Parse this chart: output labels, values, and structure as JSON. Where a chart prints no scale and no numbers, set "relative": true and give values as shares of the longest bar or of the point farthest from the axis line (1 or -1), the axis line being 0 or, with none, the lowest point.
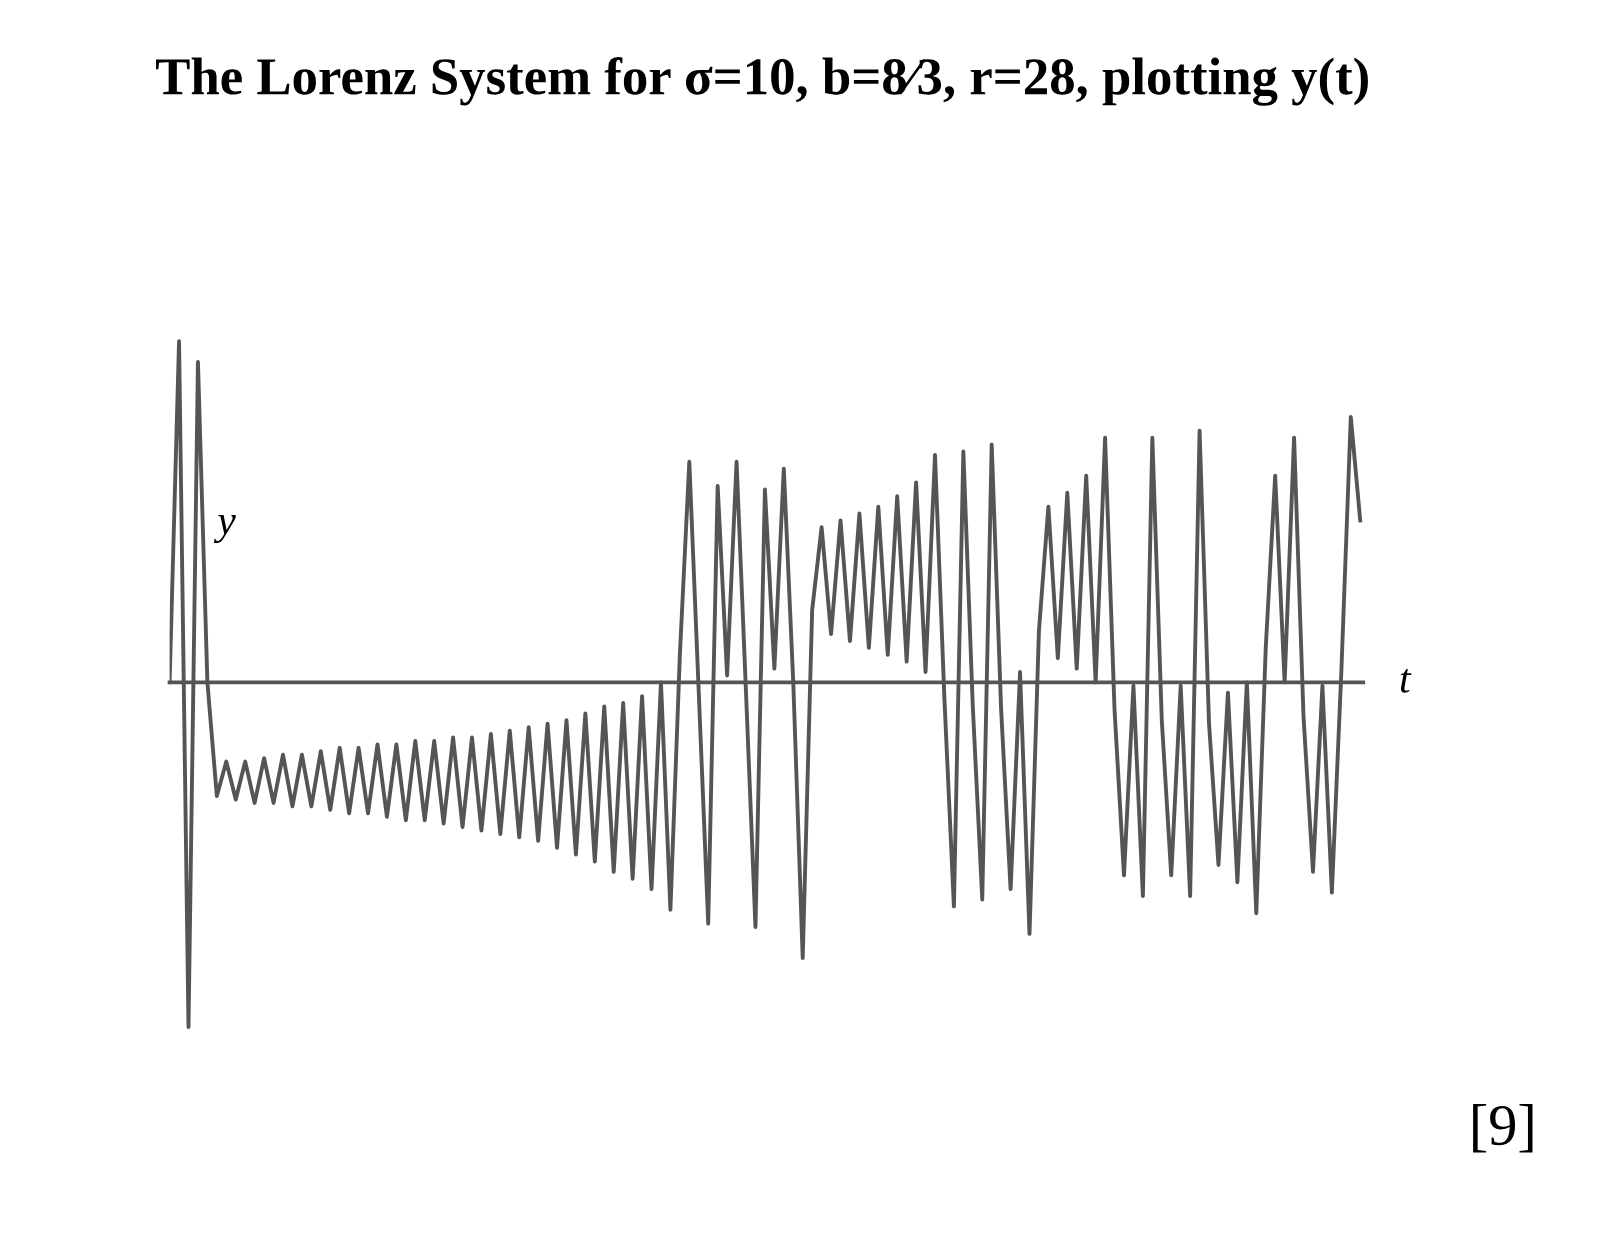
{
  "chart_data": {
    "type": "line",
    "title": "The Lorenz System for σ=10, b=8⁄3, r=28, plotting y(t)",
    "xlabel": "t",
    "ylabel": "y",
    "relative": true,
    "annotations": [
      "[9]"
    ],
    "legend": false,
    "categories": [
      null,
      null,
      null,
      null,
      null,
      null,
      null,
      null,
      null,
      null,
      null,
      null,
      null,
      null,
      null,
      null,
      null,
      null,
      null,
      null,
      null,
      null,
      null,
      null,
      null,
      null,
      null,
      null,
      null,
      null,
      null,
      null,
      null,
      null,
      null,
      null,
      null,
      null,
      null,
      null,
      null,
      null,
      null,
      null,
      null,
      null,
      null,
      null,
      null,
      null,
      null,
      null,
      null,
      null,
      null,
      null,
      null,
      null,
      null,
      null,
      null,
      null,
      null,
      null,
      null,
      null,
      null,
      null,
      null,
      null,
      null,
      null,
      null,
      null,
      null,
      null,
      null,
      null,
      null,
      null,
      null,
      null,
      null,
      null,
      null,
      null,
      null,
      null,
      null,
      null,
      null,
      null,
      null,
      null,
      null,
      null,
      null,
      null,
      null,
      null,
      null,
      null,
      null,
      null,
      null,
      null,
      null,
      null,
      null,
      null,
      null,
      null,
      null,
      null,
      null,
      null,
      null,
      null,
      null,
      null,
      null,
      null,
      null,
      null,
      null,
      null,
      null
    ],
    "series": [
      {
        "color": "#555555",
        "values": [
          0.0,
          0.99,
          -1.0,
          0.93,
          0.0,
          -0.33,
          -0.23,
          -0.34,
          -0.23,
          -0.35,
          -0.22,
          -0.35,
          -0.21,
          -0.36,
          -0.21,
          -0.36,
          -0.2,
          -0.37,
          -0.19,
          -0.38,
          -0.19,
          -0.38,
          -0.18,
          -0.39,
          -0.18,
          -0.4,
          -0.17,
          -0.4,
          -0.17,
          -0.41,
          -0.16,
          -0.42,
          -0.16,
          -0.43,
          -0.15,
          -0.44,
          -0.14,
          -0.45,
          -0.13,
          -0.46,
          -0.12,
          -0.48,
          -0.11,
          -0.5,
          -0.09,
          -0.52,
          -0.07,
          -0.55,
          -0.06,
          -0.57,
          -0.04,
          -0.6,
          0.0,
          -0.66,
          0.08,
          0.64,
          -0.03,
          -0.7,
          0.57,
          0.02,
          0.64,
          -0.03,
          -0.71,
          0.56,
          0.04,
          0.62,
          0.0,
          -0.8,
          0.21,
          0.45,
          0.14,
          0.47,
          0.12,
          0.49,
          0.1,
          0.51,
          0.08,
          0.54,
          0.06,
          0.58,
          0.03,
          0.66,
          -0.05,
          -0.65,
          0.67,
          -0.07,
          -0.63,
          0.69,
          -0.08,
          -0.6,
          0.03,
          -0.73,
          0.15,
          0.51,
          0.07,
          0.55,
          0.04,
          0.6,
          0.0,
          0.71,
          -0.08,
          -0.56,
          -0.01,
          -0.62,
          0.71,
          -0.11,
          -0.56,
          -0.01,
          -0.62,
          0.73,
          -0.12,
          -0.53,
          -0.03,
          -0.58,
          0.0,
          -0.67,
          0.1,
          0.6,
          0.0,
          0.71,
          -0.1,
          -0.55,
          -0.01,
          -0.61,
          0.03,
          0.77,
          0.47
        ]
      }
    ]
  }
}
